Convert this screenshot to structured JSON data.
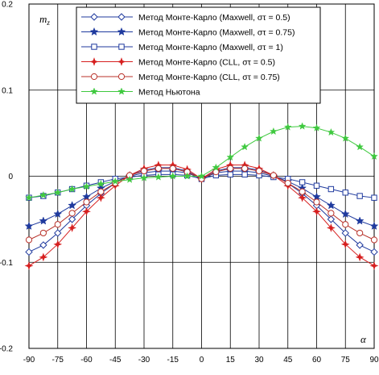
{
  "chart_data": {
    "type": "line",
    "xlabel": "α",
    "ylabel": "m",
    "ylabel_sub": "z",
    "xlim": [
      -90,
      90
    ],
    "ylim": [
      -0.2,
      0.2
    ],
    "x_ticks": [
      "-90",
      "-75",
      "-60",
      "-45",
      "-30",
      "-15",
      "0",
      "15",
      "30",
      "45",
      "60",
      "75",
      "90"
    ],
    "y_ticks": [
      "0.2",
      "0.1",
      "0",
      "-0.1",
      "-0.2"
    ],
    "grid": true,
    "legend_position": "top-center",
    "x": [
      -90,
      -82.5,
      -75,
      -67.5,
      -60,
      -52.5,
      -45,
      -37.5,
      -30,
      -22.5,
      -15,
      -7.5,
      0,
      7.5,
      15,
      22.5,
      30,
      37.5,
      45,
      52.5,
      60,
      67.5,
      75,
      82.5,
      90
    ],
    "series": [
      {
        "name": "Метод Монте-Карло (Maxwell, στ = 0.5)",
        "marker": "diamond-open",
        "color": "#1f3a9e",
        "values": [
          -0.088,
          -0.08,
          -0.066,
          -0.05,
          -0.034,
          -0.02,
          -0.008,
          0.001,
          0.007,
          0.01,
          0.01,
          0.006,
          -0.003,
          0.006,
          0.01,
          0.01,
          0.007,
          0.001,
          -0.008,
          -0.02,
          -0.034,
          -0.05,
          -0.066,
          -0.08,
          -0.088
        ]
      },
      {
        "name": "Метод Монте-Карло (Maxwell, στ = 0.75)",
        "marker": "star-filled",
        "color": "#1f3a9e",
        "values": [
          -0.058,
          -0.052,
          -0.044,
          -0.034,
          -0.024,
          -0.014,
          -0.006,
          0,
          0.004,
          0.006,
          0.006,
          0.004,
          -0.003,
          0.004,
          0.006,
          0.006,
          0.004,
          0,
          -0.006,
          -0.014,
          -0.024,
          -0.034,
          -0.044,
          -0.052,
          -0.058
        ]
      },
      {
        "name": "Метод Монте-Карло (Maxwell, στ = 1)",
        "marker": "square-open",
        "color": "#1f3a9e",
        "values": [
          -0.025,
          -0.023,
          -0.019,
          -0.015,
          -0.011,
          -0.007,
          -0.003,
          -0.001,
          0.001,
          0.002,
          0.002,
          0.001,
          -0.003,
          0.001,
          0.002,
          0.002,
          0.001,
          -0.001,
          -0.003,
          -0.007,
          -0.011,
          -0.015,
          -0.019,
          -0.023,
          -0.025
        ]
      },
      {
        "name": "Метод Монте-Карло (CLL, στ = 0.5)",
        "marker": "plus-star",
        "color": "#d61f1f",
        "values": [
          -0.104,
          -0.094,
          -0.079,
          -0.06,
          -0.041,
          -0.025,
          -0.011,
          0.001,
          0.009,
          0.013,
          0.013,
          0.008,
          -0.003,
          0.008,
          0.013,
          0.013,
          0.009,
          0.001,
          -0.011,
          -0.025,
          -0.041,
          -0.06,
          -0.079,
          -0.094,
          -0.104
        ]
      },
      {
        "name": "Метод Монте-Карло (CLL, στ = 0.75)",
        "marker": "circle-open",
        "color": "#b8322a",
        "values": [
          -0.074,
          -0.066,
          -0.056,
          -0.043,
          -0.03,
          -0.018,
          -0.008,
          0.001,
          0.006,
          0.009,
          0.009,
          0.005,
          -0.003,
          0.005,
          0.009,
          0.009,
          0.006,
          0.001,
          -0.008,
          -0.018,
          -0.03,
          -0.043,
          -0.056,
          -0.066,
          -0.074
        ]
      },
      {
        "name": "Метод Ньютона",
        "marker": "star-green",
        "color": "#3fc93f",
        "values": [
          -0.025,
          -0.022,
          -0.019,
          -0.015,
          -0.012,
          -0.009,
          -0.006,
          -0.004,
          -0.002,
          -0.001,
          0,
          0,
          0,
          0.01,
          0.022,
          0.034,
          0.044,
          0.052,
          0.057,
          0.058,
          0.056,
          0.051,
          0.044,
          0.034,
          0.023
        ]
      }
    ]
  }
}
